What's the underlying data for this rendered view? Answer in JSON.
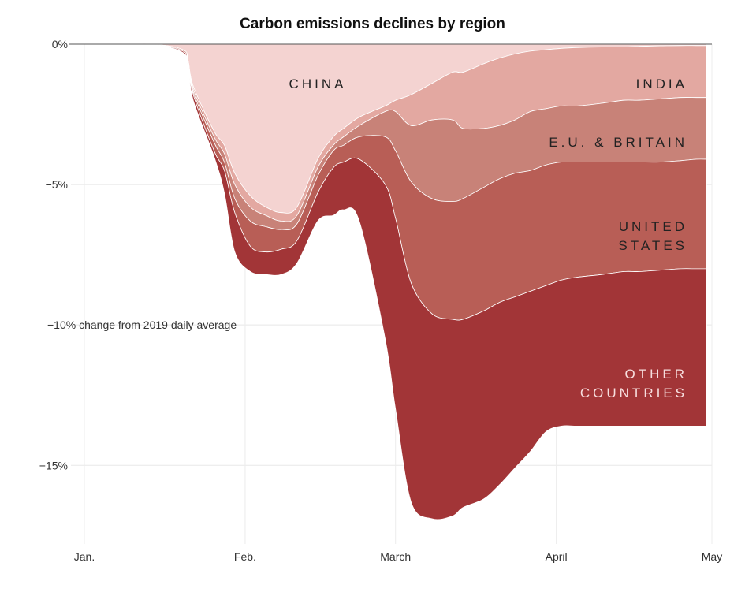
{
  "chart_data": {
    "type": "area",
    "title": "Carbon emissions declines by region",
    "y_note": "−10% change from 2019 daily average",
    "xlim": [
      0,
      121
    ],
    "ylim": [
      -17.8,
      0
    ],
    "x_ticks": [
      {
        "x": 0,
        "label": "Jan."
      },
      {
        "x": 31,
        "label": "Feb."
      },
      {
        "x": 60,
        "label": "March"
      },
      {
        "x": 91,
        "label": "April"
      },
      {
        "x": 121,
        "label": "May"
      }
    ],
    "y_ticks": [
      {
        "y": 0,
        "label": "0%"
      },
      {
        "y": -5,
        "label": "−5%"
      },
      {
        "y": -15,
        "label": "−15%"
      }
    ],
    "y_gridlines": [
      0,
      -5,
      -10,
      -15
    ],
    "grid": true,
    "stacking": "cumulative, values are boundaries below 0%",
    "x": [
      3,
      13,
      19,
      20,
      21,
      25,
      27,
      29,
      32,
      35,
      38,
      41,
      45,
      48,
      50,
      53,
      58,
      60,
      63,
      67,
      71,
      73,
      77,
      80,
      83,
      86,
      89,
      92,
      95,
      100,
      104,
      107,
      111,
      115,
      118,
      120
    ],
    "series": [
      {
        "name": "CHINA",
        "label_lines": [
          "CHINA"
        ],
        "color": "#f4d3d1",
        "boundary": [
          0,
          0,
          -0.2,
          -0.6,
          -1.5,
          -3.1,
          -3.6,
          -4.6,
          -5.4,
          -5.8,
          -6.0,
          -5.8,
          -4.1,
          -3.3,
          -3.0,
          -2.6,
          -2.2,
          -2.0,
          -1.8,
          -1.4,
          -1.0,
          -1.0,
          -0.7,
          -0.5,
          -0.35,
          -0.25,
          -0.2,
          -0.15,
          -0.12,
          -0.1,
          -0.1,
          -0.08,
          -0.06,
          -0.05,
          -0.05,
          -0.05
        ]
      },
      {
        "name": "INDIA",
        "label_lines": [
          "INDIA"
        ],
        "color": "#e3a8a1",
        "boundary": [
          0,
          0,
          -0.2,
          -0.6,
          -1.6,
          -3.3,
          -3.9,
          -5.0,
          -5.8,
          -6.1,
          -6.3,
          -6.1,
          -4.4,
          -3.6,
          -3.3,
          -2.9,
          -2.4,
          -2.4,
          -2.9,
          -2.7,
          -2.7,
          -3.0,
          -3.0,
          -2.9,
          -2.7,
          -2.4,
          -2.3,
          -2.2,
          -2.2,
          -2.1,
          -2.0,
          -2.0,
          -1.95,
          -1.9,
          -1.9,
          -1.9
        ]
      },
      {
        "name": "E.U. & BRITAIN",
        "label_lines": [
          "E.U. & BRITAIN"
        ],
        "color": "#c88278",
        "boundary": [
          0,
          0,
          -0.25,
          -0.7,
          -1.7,
          -3.5,
          -4.2,
          -5.5,
          -6.3,
          -6.5,
          -6.6,
          -6.4,
          -4.7,
          -3.8,
          -3.6,
          -3.3,
          -3.3,
          -3.8,
          -4.9,
          -5.5,
          -5.6,
          -5.5,
          -5.1,
          -4.8,
          -4.6,
          -4.5,
          -4.3,
          -4.2,
          -4.2,
          -4.2,
          -4.2,
          -4.2,
          -4.2,
          -4.15,
          -4.1,
          -4.1
        ]
      },
      {
        "name": "UNITED STATES",
        "label_lines": [
          "UNITED",
          "STATES"
        ],
        "color": "#b85e56",
        "boundary": [
          0,
          0,
          -0.25,
          -0.7,
          -1.8,
          -3.8,
          -4.5,
          -6.0,
          -7.2,
          -7.4,
          -7.3,
          -7.0,
          -5.3,
          -4.4,
          -4.2,
          -4.1,
          -5.0,
          -6.2,
          -8.5,
          -9.6,
          -9.8,
          -9.8,
          -9.5,
          -9.2,
          -9.0,
          -8.8,
          -8.6,
          -8.4,
          -8.3,
          -8.2,
          -8.1,
          -8.1,
          -8.05,
          -8.0,
          -8.0,
          -8.0
        ]
      },
      {
        "name": "OTHER COUNTRIES",
        "label_lines": [
          "OTHER",
          "COUNTRIES"
        ],
        "color": "#a23537",
        "boundary": [
          0,
          0,
          -0.3,
          -0.8,
          -2.0,
          -4.0,
          -5.3,
          -7.4,
          -8.1,
          -8.2,
          -8.2,
          -7.8,
          -6.3,
          -6.1,
          -5.9,
          -6.3,
          -10.5,
          -13.0,
          -16.3,
          -16.9,
          -16.8,
          -16.5,
          -16.2,
          -15.7,
          -15.1,
          -14.5,
          -13.8,
          -13.6,
          -13.6,
          -13.6,
          -13.6,
          -13.6,
          -13.6,
          -13.6,
          -13.6,
          -13.6
        ]
      }
    ],
    "notes": "Areas end at x=121 (May)"
  }
}
